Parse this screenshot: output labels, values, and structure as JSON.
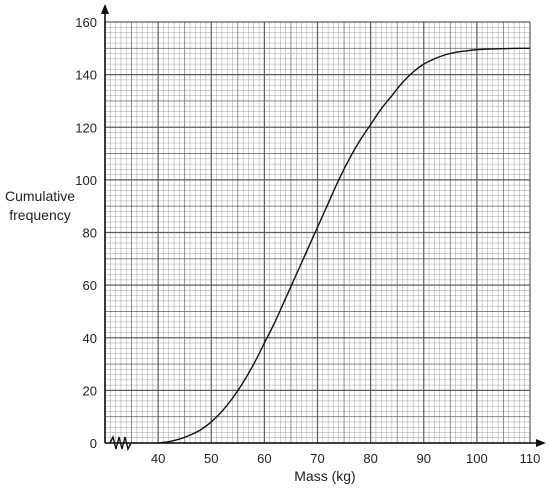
{
  "chart_data": {
    "type": "line",
    "title": "",
    "xlabel": "Mass (kg)",
    "ylabel_lines": [
      "Cumulative",
      "frequency"
    ],
    "xlim": [
      30,
      110
    ],
    "ylim": [
      0,
      160
    ],
    "x_ticks": [
      40,
      50,
      60,
      70,
      80,
      90,
      100,
      110
    ],
    "y_ticks": [
      0,
      20,
      40,
      60,
      80,
      100,
      120,
      140,
      160
    ],
    "grid": true,
    "axis_break": "zigzag near origin on x-axis",
    "colors": {
      "grid": "#555555",
      "curve": "#111111",
      "axis": "#111111"
    },
    "series": [
      {
        "x": [
          40,
          42,
          44,
          46,
          48,
          50,
          52,
          54,
          56,
          58,
          60,
          62,
          64,
          66,
          68,
          70,
          72,
          74,
          76,
          78,
          80,
          82,
          84,
          86,
          88,
          90,
          92,
          94,
          96,
          98,
          100,
          102,
          104,
          106,
          108,
          110
        ],
        "y": [
          0,
          0.5,
          1.5,
          3,
          5,
          8,
          12,
          17,
          23,
          30,
          38,
          46,
          55,
          64,
          73,
          82,
          91,
          100,
          108,
          115,
          121,
          127,
          132,
          137,
          141,
          144,
          146,
          147.5,
          148.5,
          149,
          149.5,
          149.7,
          149.8,
          149.9,
          150,
          150
        ]
      }
    ]
  }
}
